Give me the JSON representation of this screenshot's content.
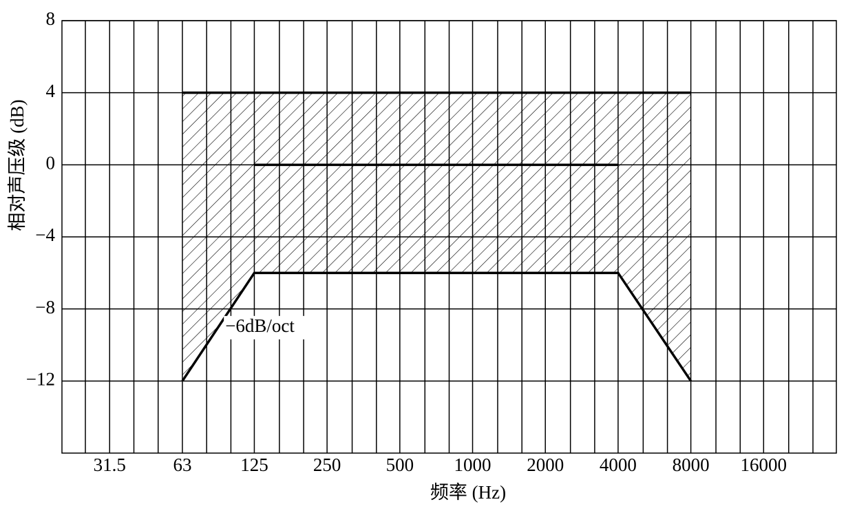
{
  "chart_data": {
    "type": "line",
    "ylabel": "相对声压级 (dB)",
    "xlabel": "频率 (Hz)",
    "xscale": "log",
    "xlim": [
      20,
      32000
    ],
    "xticks": [
      31.5,
      63,
      125,
      250,
      500,
      1000,
      2000,
      4000,
      8000,
      16000
    ],
    "ylim": [
      -16,
      8
    ],
    "yticks": [
      {
        "value": -12,
        "label": "−12"
      },
      {
        "value": -8,
        "label": "−8"
      },
      {
        "value": -4,
        "label": "−4"
      },
      0,
      4,
      8
    ],
    "grid": true,
    "hatch": true,
    "series": [
      {
        "color": "#000000",
        "x": [
          63,
          8000
        ],
        "values": [
          4,
          4
        ]
      },
      {
        "color": "#000000",
        "x": [
          125,
          4000
        ],
        "values": [
          0,
          0
        ]
      },
      {
        "color": "#000000",
        "x": [
          63,
          125,
          4000,
          8000
        ],
        "values": [
          -12,
          -6,
          -6,
          -12
        ]
      }
    ],
    "annotation": "−6dB/oct"
  }
}
